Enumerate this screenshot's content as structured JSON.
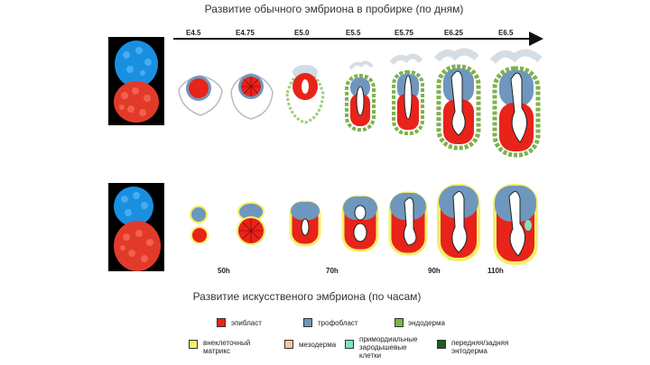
{
  "title_top": "Развитие обычного эмбриона в пробирке (по дням)",
  "title_bottom": "Развитие искусственого эмбриона (по часам)",
  "days": [
    "E4.5",
    "E4.75",
    "E5.0",
    "E5.5",
    "E5.75",
    "E6.25",
    "E6.5"
  ],
  "hours": [
    "50h",
    "70h",
    "90h",
    "110h"
  ],
  "colors": {
    "epiblast": "#e8231a",
    "trophoblast": "#6f97bd",
    "endoderm": "#7fb24a",
    "extraembryonic_matrix": "#f3f06a",
    "mesoderm": "#f2c7a6",
    "primordial_germ_cells": "#7ee2c0",
    "anterior_posterior_endoderm": "#1f5c1a"
  },
  "legend": {
    "epiblast": "эпибласт",
    "trophoblast": "трофобласт",
    "endoderm": "эндодерма",
    "matrix_line1": "внеклеточный",
    "matrix_line2": "матрикс",
    "mesoderm": "мезодерма",
    "pgc_line1": "примордиальные",
    "pgc_line2": "зародышевые",
    "pgc_line3": "клетки",
    "ap_line1": "передняя/задняя",
    "ap_line2": "энтодерма"
  }
}
